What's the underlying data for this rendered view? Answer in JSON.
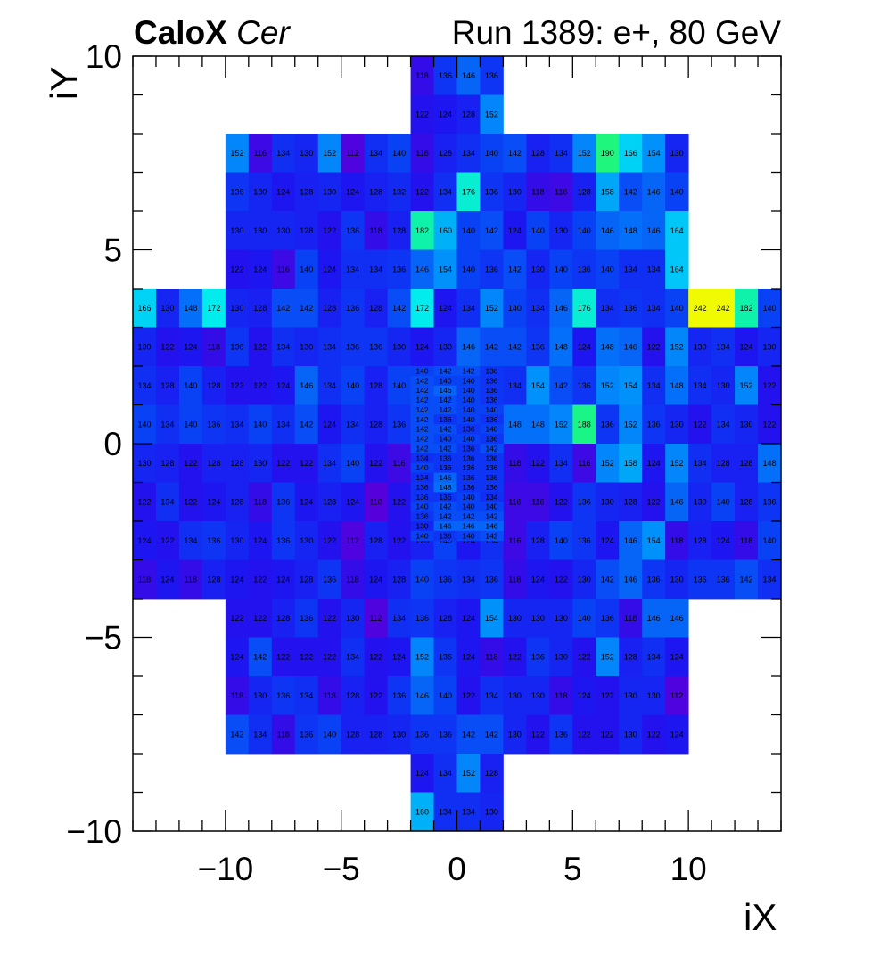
{
  "header": {
    "detector": "CaloX",
    "channel": "Cer",
    "run_label": "Run 1389: e+, 80 GeV"
  },
  "chart_data": {
    "type": "heatmap",
    "xlabel": "iX",
    "ylabel": "iY",
    "xlim": [
      -14,
      14
    ],
    "ylim": [
      -10,
      10
    ],
    "x_ticks": [
      "−10",
      "−5",
      "0",
      "5",
      "10"
    ],
    "y_ticks": [
      "−10",
      "−5",
      "0",
      "5",
      "10"
    ],
    "colormap": "viridis-like (purple → blue → cyan → green → yellow)",
    "z_range": [
      110,
      242
    ],
    "coarse_cells": [
      {
        "y": 9.5,
        "x0": -2,
        "values": [
          118,
          136,
          146,
          136
        ]
      },
      {
        "y": 8.5,
        "x0": -2,
        "values": [
          122,
          124,
          128,
          152
        ]
      },
      {
        "y": 7.5,
        "x0": -10,
        "values": [
          152,
          116,
          134,
          130,
          152,
          112,
          134,
          140,
          118,
          128,
          134,
          140,
          142,
          128,
          134,
          152,
          190,
          166,
          154,
          130
        ]
      },
      {
        "y": 6.5,
        "x0": -10,
        "values": [
          136,
          130,
          124,
          128,
          130,
          124,
          128,
          132,
          122,
          134,
          176,
          136,
          130,
          118,
          116,
          128,
          158,
          142,
          146,
          140
        ]
      },
      {
        "y": 5.5,
        "x0": -10,
        "values": [
          130,
          130,
          130,
          128,
          122,
          136,
          118,
          128,
          182,
          160,
          140,
          142,
          124,
          140,
          130,
          140,
          146,
          148,
          146,
          164
        ]
      },
      {
        "y": 4.5,
        "x0": -10,
        "values": [
          122,
          124,
          116,
          140,
          124,
          134,
          134,
          136,
          146,
          154,
          140,
          136,
          142,
          130,
          140,
          136,
          140,
          134,
          134,
          164
        ]
      },
      {
        "y": 3.5,
        "x0": -14,
        "values": [
          166,
          130,
          148,
          172,
          130,
          128,
          142,
          142,
          128,
          136,
          128,
          142,
          172,
          124,
          134,
          152,
          140,
          134,
          146,
          176,
          134,
          136,
          134,
          140,
          242,
          242,
          182,
          140
        ]
      },
      {
        "y": 2.5,
        "x0": -14,
        "values": [
          130,
          122,
          124,
          118,
          136,
          122,
          134,
          130,
          134,
          136,
          136,
          130,
          124,
          130,
          146,
          142,
          142,
          136,
          148,
          124,
          148,
          146,
          122,
          152,
          130,
          134,
          124,
          130
        ]
      },
      {
        "y": 1.5,
        "x0": -14,
        "values": [
          134,
          128,
          140,
          128,
          122,
          122,
          124,
          146,
          134,
          140,
          128,
          140,
          null,
          null,
          null,
          null,
          134,
          154,
          142,
          136,
          152,
          154,
          134,
          148,
          134,
          130,
          152,
          122
        ]
      },
      {
        "y": 0.5,
        "x0": -14,
        "values": [
          140,
          134,
          140,
          136,
          134,
          140,
          134,
          142,
          124,
          134,
          128,
          136,
          null,
          null,
          null,
          null,
          148,
          148,
          152,
          188,
          136,
          152,
          136,
          130,
          122,
          134,
          130,
          122
        ]
      },
      {
        "y": -0.5,
        "x0": -14,
        "values": [
          130,
          128,
          122,
          128,
          128,
          130,
          122,
          122,
          134,
          140,
          122,
          116,
          null,
          null,
          null,
          null,
          118,
          122,
          134,
          116,
          152,
          158,
          124,
          152,
          134,
          128,
          128,
          148
        ]
      },
      {
        "y": -1.5,
        "x0": -14,
        "values": [
          122,
          134,
          122,
          124,
          128,
          118,
          136,
          124,
          128,
          124,
          110,
          122,
          null,
          null,
          null,
          null,
          116,
          116,
          122,
          136,
          130,
          128,
          122,
          146,
          130,
          140,
          128,
          136
        ]
      },
      {
        "y": -2.5,
        "x0": -14,
        "values": [
          124,
          122,
          134,
          136,
          130,
          124,
          136,
          130,
          122,
          112,
          128,
          122,
          128,
          140,
          124,
          134,
          116,
          128,
          140,
          136,
          124,
          146,
          154,
          118,
          128,
          124,
          118,
          140
        ]
      },
      {
        "y": -3.5,
        "x0": -14,
        "values": [
          118,
          124,
          118,
          128,
          124,
          122,
          124,
          128,
          136,
          118,
          124,
          128,
          140,
          136,
          134,
          136,
          118,
          124,
          122,
          130,
          142,
          146,
          136,
          130,
          136,
          136,
          142,
          134
        ]
      },
      {
        "y": -4.5,
        "x0": -10,
        "values": [
          122,
          122,
          128,
          136,
          122,
          130,
          112,
          134,
          136,
          128,
          124,
          154,
          130,
          130,
          130,
          140,
          136,
          118,
          146,
          146
        ]
      },
      {
        "y": -5.5,
        "x0": -10,
        "values": [
          124,
          142,
          122,
          122,
          122,
          134,
          122,
          124,
          152,
          136,
          124,
          118,
          122,
          136,
          130,
          122,
          152,
          128,
          134,
          124
        ]
      },
      {
        "y": -6.5,
        "x0": -10,
        "values": [
          118,
          130,
          136,
          134,
          118,
          128,
          122,
          136,
          146,
          140,
          122,
          134,
          130,
          130,
          118,
          124,
          122,
          130,
          130,
          112
        ]
      },
      {
        "y": -7.5,
        "x0": -10,
        "values": [
          142,
          134,
          118,
          136,
          140,
          128,
          128,
          130,
          136,
          136,
          142,
          142,
          130,
          122,
          136,
          122,
          122,
          130,
          122,
          124
        ]
      },
      {
        "y": -8.5,
        "x0": -2,
        "values": [
          124,
          134,
          152,
          128
        ]
      },
      {
        "y": -9.5,
        "x0": -2,
        "values": [
          160,
          134,
          134,
          130
        ]
      }
    ],
    "fine_cells": {
      "x0": -2,
      "y_top": 2,
      "dy": 0.25,
      "x_step": 1,
      "rows": [
        [
          140,
          142,
          142,
          136
        ],
        [
          142,
          140,
          140,
          136
        ],
        [
          142,
          146,
          140,
          136
        ],
        [
          142,
          142,
          140,
          136
        ],
        [
          142,
          142,
          140,
          140
        ],
        [
          142,
          136,
          140,
          136
        ],
        [
          142,
          142,
          136,
          140
        ],
        [
          142,
          140,
          140,
          136
        ],
        [
          142,
          142,
          136,
          142
        ],
        [
          134,
          136,
          136,
          136
        ],
        [
          140,
          136,
          136,
          136
        ],
        [
          134,
          146,
          136,
          136
        ],
        [
          136,
          148,
          136,
          136
        ],
        [
          136,
          136,
          140,
          134
        ],
        [
          140,
          142,
          140,
          140
        ],
        [
          136,
          142,
          142,
          142
        ],
        [
          130,
          146,
          146,
          146
        ],
        [
          140,
          136,
          140,
          142
        ]
      ]
    }
  }
}
